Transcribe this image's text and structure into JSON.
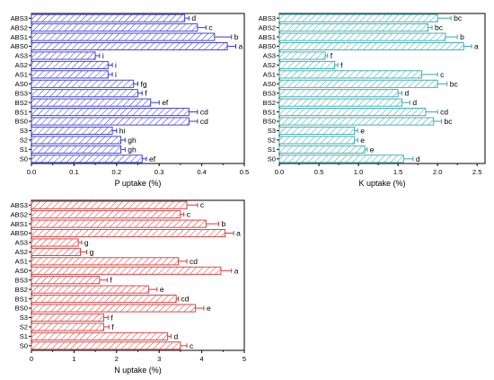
{
  "chart_data": [
    {
      "type": "bar",
      "orientation": "horizontal",
      "xlabel": "P uptake (%)",
      "ylabel": "",
      "xlim": [
        0,
        0.5
      ],
      "xticks": [
        "0.0",
        "0.1",
        "0.2",
        "0.3",
        "0.4",
        "0.5"
      ],
      "color": "#3333dd",
      "hatch": "diagonal",
      "grid": false,
      "categories": [
        "ABS3",
        "ABS2",
        "ABS1",
        "ABS0",
        "AS3",
        "AS2",
        "AS1",
        "AS0",
        "BS3",
        "BS2",
        "BS1",
        "BS0",
        "S3",
        "S2",
        "S1",
        "S0"
      ],
      "values": [
        0.36,
        0.39,
        0.43,
        0.46,
        0.15,
        0.18,
        0.18,
        0.24,
        0.25,
        0.28,
        0.37,
        0.37,
        0.19,
        0.21,
        0.21,
        0.26
      ],
      "errors": [
        0.01,
        0.02,
        0.04,
        0.02,
        0.01,
        0.01,
        0.01,
        0.01,
        0.01,
        0.02,
        0.02,
        0.02,
        0.01,
        0.01,
        0.01,
        0.01
      ],
      "letters": [
        "d",
        "c",
        "b",
        "a",
        "i",
        "i",
        "i",
        "fg",
        "f",
        "ef",
        "cd",
        "cd",
        "hi",
        "gh",
        "gh",
        "ef"
      ]
    },
    {
      "type": "bar",
      "orientation": "horizontal",
      "xlabel": "K uptake (%)",
      "ylabel": "",
      "xlim": [
        0,
        2.6
      ],
      "xticks": [
        "0.0",
        "0.5",
        "1.0",
        "1.5",
        "2.0",
        "2.5"
      ],
      "color": "#33aaaa",
      "hatch": "diagonal",
      "grid": false,
      "categories": [
        "ABS3",
        "ABS2",
        "ABS1",
        "ABS0",
        "AS3",
        "AS2",
        "AS1",
        "AS0",
        "BS3",
        "BS2",
        "BS1",
        "BS0",
        "S3",
        "S2",
        "S1",
        "S0"
      ],
      "values": [
        2.0,
        1.88,
        2.1,
        2.33,
        0.58,
        0.7,
        1.8,
        2.0,
        1.5,
        1.55,
        1.85,
        1.95,
        0.95,
        0.95,
        1.08,
        1.57
      ],
      "errors": [
        0.17,
        0.05,
        0.15,
        0.1,
        0.03,
        0.04,
        0.2,
        0.12,
        0.05,
        0.1,
        0.15,
        0.1,
        0.04,
        0.04,
        0.03,
        0.12
      ],
      "letters": [
        "bc",
        "bc",
        "b",
        "a",
        "f",
        "f",
        "c",
        "bc",
        "d",
        "d",
        "cd",
        "bc",
        "e",
        "e",
        "e",
        "d"
      ]
    },
    {
      "type": "bar",
      "orientation": "horizontal",
      "xlabel": "N uptake (%)",
      "ylabel": "",
      "xlim": [
        0,
        5
      ],
      "xticks": [
        "0",
        "1",
        "2",
        "3",
        "4",
        "5"
      ],
      "color": "#dd3333",
      "hatch": "diagonal",
      "grid": false,
      "categories": [
        "ABS3",
        "ABS2",
        "ABS1",
        "ABS0",
        "AS3",
        "AS2",
        "AS1",
        "AS0",
        "BS3",
        "BS2",
        "BS1",
        "BS0",
        "S3",
        "S2",
        "S1",
        "S0"
      ],
      "values": [
        3.65,
        3.5,
        4.1,
        4.55,
        1.1,
        1.15,
        3.45,
        4.45,
        1.6,
        2.75,
        3.4,
        3.85,
        1.7,
        1.7,
        3.2,
        3.5
      ],
      "errors": [
        0.25,
        0.08,
        0.3,
        0.2,
        0.08,
        0.15,
        0.2,
        0.25,
        0.18,
        0.2,
        0.05,
        0.2,
        0.1,
        0.12,
        0.08,
        0.15
      ],
      "letters": [
        "c",
        "c",
        "b",
        "a",
        "g",
        "g",
        "cd",
        "a",
        "f",
        "e",
        "cd",
        "e",
        "f",
        "f",
        "d",
        "c"
      ]
    }
  ]
}
